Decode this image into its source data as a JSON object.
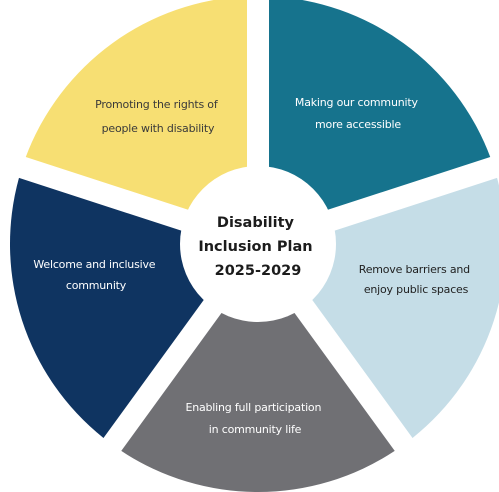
{
  "center": {
    "title_lines": [
      "Disability",
      "Inclusion Plan",
      "2025-2029"
    ]
  },
  "segments": [
    {
      "lines": [
        "Promoting the rights of",
        "people with disability"
      ],
      "color": "#f7df73",
      "text_color": "#3a3a3a"
    },
    {
      "lines": [
        "Making our community",
        "more accessible"
      ],
      "color": "#16738d",
      "text_color": "#ffffff"
    },
    {
      "lines": [
        "Remove barriers and",
        "enjoy public spaces"
      ],
      "color": "#c5dde7",
      "text_color": "#1f1f1f"
    },
    {
      "lines": [
        "Enabling full participation",
        "in community life"
      ],
      "color": "#707074",
      "text_color": "#ffffff"
    },
    {
      "lines": [
        "Welcome and inclusive",
        "community"
      ],
      "color": "#0f3461",
      "text_color": "#ffffff"
    }
  ],
  "background": "#ffffff",
  "center_fill": "#ffffff"
}
